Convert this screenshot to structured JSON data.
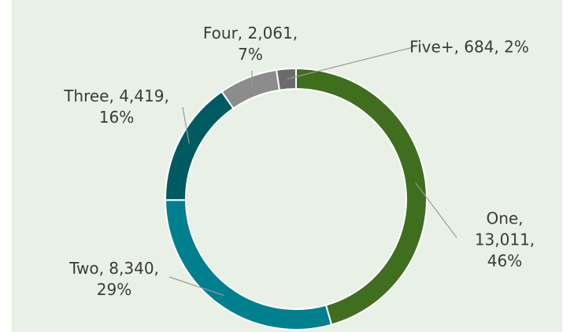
{
  "chart_data": {
    "type": "donut",
    "values": [
      13011,
      8340,
      4419,
      2061,
      684
    ],
    "value_labels": [
      "One, 13,011, 46%",
      "Two, 8,340, 29%",
      "Three, 4,419, 16%",
      "Four, 2,061, 7%",
      "Five+, 684, 2%"
    ],
    "colors": [
      "#3f6e1f",
      "#00808f",
      "#005a62",
      "#8c8c8c",
      "#6b6b6b"
    ]
  }
}
